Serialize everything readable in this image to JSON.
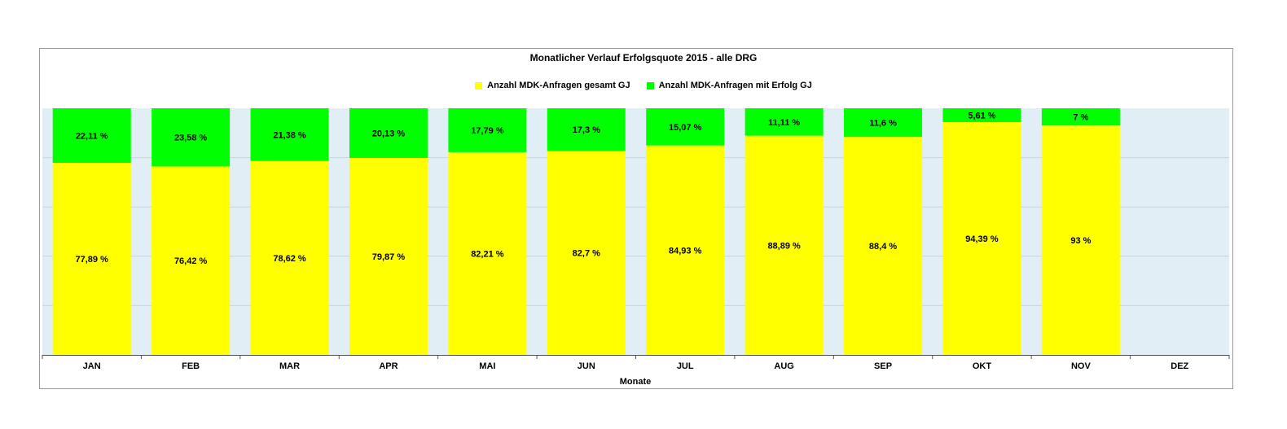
{
  "chart_data": {
    "type": "bar",
    "stacked": true,
    "title": "Monatlicher Verlauf Erfolgsquote 2015 -  alle DRG",
    "xlabel": "Monate",
    "ylabel": "",
    "ylim": [
      0,
      100
    ],
    "grid": true,
    "legend_position": "top",
    "categories": [
      "JAN",
      "FEB",
      "MAR",
      "APR",
      "MAI",
      "JUN",
      "JUL",
      "AUG",
      "SEP",
      "OKT",
      "NOV",
      "DEZ"
    ],
    "series": [
      {
        "name": "Anzahl MDK-Anfragen gesamt  GJ",
        "color": "#ffff00",
        "values": [
          77.89,
          76.42,
          78.62,
          79.87,
          82.21,
          82.7,
          84.93,
          88.89,
          88.4,
          94.39,
          93,
          null
        ],
        "labels": [
          "77,89 %",
          "76,42 %",
          "78,62 %",
          "79,87 %",
          "82,21 %",
          "82,7 %",
          "84,93 %",
          "88,89 %",
          "88,4 %",
          "94,39 %",
          "93 %",
          ""
        ]
      },
      {
        "name": "Anzahl MDK-Anfragen mit Erfolg GJ",
        "color": "#00ff00",
        "values": [
          22.11,
          23.58,
          21.38,
          20.13,
          17.79,
          17.3,
          15.07,
          11.11,
          11.6,
          5.61,
          7,
          null
        ],
        "labels": [
          "22,11 %",
          "23,58 %",
          "21,38 %",
          "20,13 %",
          "17,79 %",
          "17,3 %",
          "15,07 %",
          "11,11 %",
          "11,6 %",
          "5,61 %",
          "7 %",
          ""
        ]
      }
    ],
    "colors": {
      "plot_background": "#e2eef5",
      "gridline": "#c8d4dc",
      "axis": "#555555"
    }
  }
}
